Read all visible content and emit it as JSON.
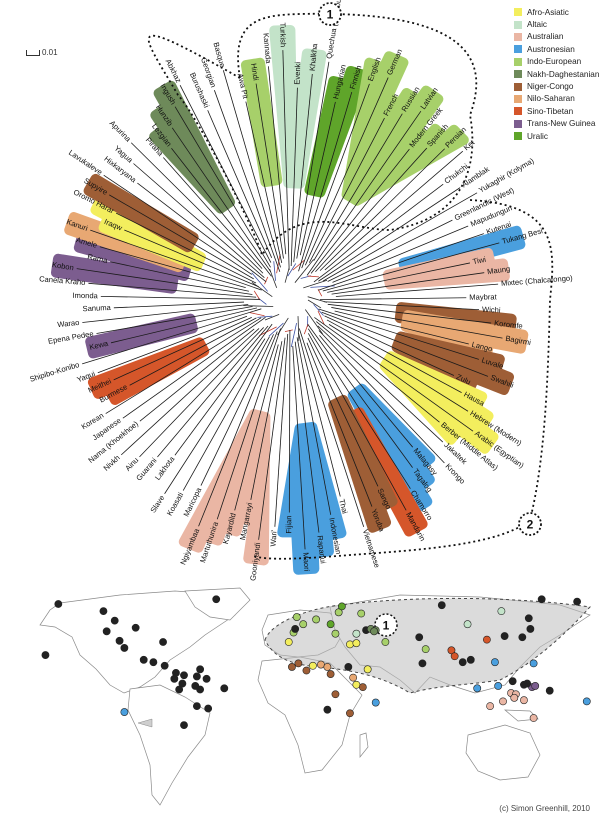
{
  "scale_label": "0.01",
  "credit": "(c) Simon Greenhill, 2010",
  "groups": [
    {
      "name": "Afro-Asiatic",
      "color": "#f3ee5e"
    },
    {
      "name": "Altaic",
      "color": "#c3e3c9"
    },
    {
      "name": "Australian",
      "color": "#eab6a4"
    },
    {
      "name": "Austronesian",
      "color": "#4a9fde"
    },
    {
      "name": "Indo-European",
      "color": "#a7d06a"
    },
    {
      "name": "Nakh-Daghestanian",
      "color": "#6e8a5a"
    },
    {
      "name": "Niger-Congo",
      "color": "#9e5e36"
    },
    {
      "name": "Nilo-Saharan",
      "color": "#e8a873"
    },
    {
      "name": "Sino-Tibetan",
      "color": "#d5562a"
    },
    {
      "name": "Trans-New Guinea",
      "color": "#7c5d8f"
    },
    {
      "name": "Uralic",
      "color": "#5fa52a"
    }
  ],
  "cluster_tags": [
    "1",
    "2"
  ],
  "languages": [
    {
      "name": "Lezgian",
      "group": "Nakh-Daghestanian"
    },
    {
      "name": "Hunzib",
      "group": "Nakh-Daghestanian"
    },
    {
      "name": "Ingush",
      "group": "Nakh-Daghestanian"
    },
    {
      "name": "Abkhaz",
      "group": ""
    },
    {
      "name": "Burushaski",
      "group": ""
    },
    {
      "name": "Georgian",
      "group": ""
    },
    {
      "name": "Basque",
      "group": ""
    },
    {
      "name": "Awa Pit",
      "group": ""
    },
    {
      "name": "Hindi",
      "group": "Indo-European"
    },
    {
      "name": "Kannada",
      "group": ""
    },
    {
      "name": "Turkish",
      "group": "Altaic"
    },
    {
      "name": "Evenki",
      "group": "Altaic"
    },
    {
      "name": "Khalkha",
      "group": "Altaic"
    },
    {
      "name": "Quechua (Imbabura)",
      "group": ""
    },
    {
      "name": "Hungarian",
      "group": "Uralic"
    },
    {
      "name": "Finnish",
      "group": "Uralic"
    },
    {
      "name": "English",
      "group": "Indo-European"
    },
    {
      "name": "German",
      "group": "Indo-European"
    },
    {
      "name": "French",
      "group": "Indo-European"
    },
    {
      "name": "Russian",
      "group": "Indo-European"
    },
    {
      "name": "Latvian",
      "group": "Indo-European"
    },
    {
      "name": "Modern Greek",
      "group": "Indo-European"
    },
    {
      "name": "Spanish",
      "group": "Indo-European"
    },
    {
      "name": "Persian",
      "group": "Indo-European"
    },
    {
      "name": "Ket",
      "group": ""
    },
    {
      "name": "Chukchi",
      "group": ""
    },
    {
      "name": "Alamblak",
      "group": ""
    },
    {
      "name": "Yukaghir (Kolyma)",
      "group": ""
    },
    {
      "name": "Greenlandic (West)",
      "group": ""
    },
    {
      "name": "Mapudungun",
      "group": ""
    },
    {
      "name": "Kutenai",
      "group": ""
    },
    {
      "name": "Tukang Besi",
      "group": "Austronesian"
    },
    {
      "name": "Tiwi",
      "group": "Australian"
    },
    {
      "name": "Maung",
      "group": "Australian"
    },
    {
      "name": "Mixtec (Chalcatongo)",
      "group": ""
    },
    {
      "name": "Maybrat",
      "group": ""
    },
    {
      "name": "Wichi",
      "group": ""
    },
    {
      "name": "Koromfe",
      "group": "Niger-Congo"
    },
    {
      "name": "Bagirmi",
      "group": "Nilo-Saharan"
    },
    {
      "name": "Lango",
      "group": "Nilo-Saharan"
    },
    {
      "name": "Luvale",
      "group": "Niger-Congo"
    },
    {
      "name": "Swahili",
      "group": "Niger-Congo"
    },
    {
      "name": "Zulu",
      "group": "Niger-Congo"
    },
    {
      "name": "Hausa",
      "group": "Afro-Asiatic"
    },
    {
      "name": "Hebrew (Modern)",
      "group": "Afro-Asiatic"
    },
    {
      "name": "Arabic (Egyptian)",
      "group": "Afro-Asiatic"
    },
    {
      "name": "Berber (Middle Atlas)",
      "group": "Afro-Asiatic"
    },
    {
      "name": "Jakaltek",
      "group": ""
    },
    {
      "name": "Krongo",
      "group": ""
    },
    {
      "name": "Malagasy",
      "group": "Austronesian"
    },
    {
      "name": "Tagalog",
      "group": "Austronesian"
    },
    {
      "name": "Chamorro",
      "group": "Austronesian"
    },
    {
      "name": "Mandarin",
      "group": "Sino-Tibetan"
    },
    {
      "name": "Sango",
      "group": "Niger-Congo"
    },
    {
      "name": "Yoruba",
      "group": "Niger-Congo"
    },
    {
      "name": "Vietnamese",
      "group": ""
    },
    {
      "name": "Thai",
      "group": ""
    },
    {
      "name": "Indonesian",
      "group": "Austronesian"
    },
    {
      "name": "Rapanui",
      "group": "Austronesian"
    },
    {
      "name": "Maori",
      "group": "Austronesian"
    },
    {
      "name": "Fijian",
      "group": "Austronesian"
    },
    {
      "name": "Wari'",
      "group": ""
    },
    {
      "name": "Gooniyandi",
      "group": "Australian"
    },
    {
      "name": "Mangarrayi",
      "group": "Australian"
    },
    {
      "name": "Kayardild",
      "group": "Australian"
    },
    {
      "name": "Martuthunira",
      "group": "Australian"
    },
    {
      "name": "Ngiyambaa",
      "group": "Australian"
    },
    {
      "name": "Maricopa",
      "group": ""
    },
    {
      "name": "Koasati",
      "group": ""
    },
    {
      "name": "Slave",
      "group": ""
    },
    {
      "name": "Lakhota",
      "group": ""
    },
    {
      "name": "Guarani",
      "group": ""
    },
    {
      "name": "Ainu",
      "group": ""
    },
    {
      "name": "Nivkh",
      "group": ""
    },
    {
      "name": "Nama (Khoekhoe)",
      "group": ""
    },
    {
      "name": "Japanese",
      "group": ""
    },
    {
      "name": "Korean",
      "group": ""
    },
    {
      "name": "Burmese",
      "group": "Sino-Tibetan"
    },
    {
      "name": "Meithei",
      "group": "Sino-Tibetan"
    },
    {
      "name": "Yaqui",
      "group": ""
    },
    {
      "name": "Shipibo-Konibo",
      "group": ""
    },
    {
      "name": "Kewa",
      "group": "Trans-New Guinea"
    },
    {
      "name": "Epena Pedee",
      "group": ""
    },
    {
      "name": "Warao",
      "group": ""
    },
    {
      "name": "Sanuma",
      "group": ""
    },
    {
      "name": "Imonda",
      "group": ""
    },
    {
      "name": "Canela Kraho",
      "group": ""
    },
    {
      "name": "Kobon",
      "group": "Trans-New Guinea"
    },
    {
      "name": "Rama",
      "group": ""
    },
    {
      "name": "Amele",
      "group": "Trans-New Guinea"
    },
    {
      "name": "Kanuri",
      "group": "Nilo-Saharan"
    },
    {
      "name": "Iraqw",
      "group": "Afro-Asiatic"
    },
    {
      "name": "Oromo Harar",
      "group": "Afro-Asiatic"
    },
    {
      "name": "Supyire",
      "group": "Niger-Congo"
    },
    {
      "name": "Lavukaleve",
      "group": ""
    },
    {
      "name": "Hixkaryana",
      "group": ""
    },
    {
      "name": "Yagua",
      "group": ""
    },
    {
      "name": "Apurina",
      "group": ""
    },
    {
      "name": "Piraha",
      "group": ""
    }
  ],
  "map_points": [
    {
      "lon": -150,
      "lat": 64,
      "group": ""
    },
    {
      "lon": -122,
      "lat": 58,
      "group": ""
    },
    {
      "lon": -115,
      "lat": 50,
      "group": ""
    },
    {
      "lon": -120,
      "lat": 41,
      "group": ""
    },
    {
      "lon": -112,
      "lat": 33,
      "group": ""
    },
    {
      "lon": -102,
      "lat": 44,
      "group": ""
    },
    {
      "lon": -85,
      "lat": 32,
      "group": ""
    },
    {
      "lon": -109,
      "lat": 27,
      "group": ""
    },
    {
      "lon": -97,
      "lat": 17,
      "group": ""
    },
    {
      "lon": -91,
      "lat": 15,
      "group": ""
    },
    {
      "lon": -84,
      "lat": 12,
      "group": ""
    },
    {
      "lon": -52,
      "lat": 68,
      "group": ""
    },
    {
      "lon": -77,
      "lat": 6,
      "group": ""
    },
    {
      "lon": -72,
      "lat": 4,
      "group": ""
    },
    {
      "lon": -62,
      "lat": 9,
      "group": ""
    },
    {
      "lon": -64,
      "lat": 3,
      "group": ""
    },
    {
      "lon": -78,
      "lat": 1,
      "group": ""
    },
    {
      "lon": -73,
      "lat": -3,
      "group": ""
    },
    {
      "lon": -65,
      "lat": -5,
      "group": ""
    },
    {
      "lon": -58,
      "lat": 1,
      "group": ""
    },
    {
      "lon": -75,
      "lat": -8,
      "group": ""
    },
    {
      "lon": -62,
      "lat": -8,
      "group": ""
    },
    {
      "lon": -47,
      "lat": -7,
      "group": ""
    },
    {
      "lon": -57,
      "lat": -24,
      "group": ""
    },
    {
      "lon": -72,
      "lat": -38,
      "group": ""
    },
    {
      "lon": -64,
      "lat": -22,
      "group": ""
    },
    {
      "lon": -109,
      "lat": -27,
      "group": "Austronesian"
    },
    {
      "lon": -2,
      "lat": 53,
      "group": "Indo-European"
    },
    {
      "lon": 2,
      "lat": 47,
      "group": "Indo-European"
    },
    {
      "lon": -4,
      "lat": 40,
      "group": "Indo-European"
    },
    {
      "lon": 10,
      "lat": 51,
      "group": "Indo-European"
    },
    {
      "lon": 24,
      "lat": 57,
      "group": "Indo-European"
    },
    {
      "lon": 38,
      "lat": 56,
      "group": "Indo-European"
    },
    {
      "lon": 22,
      "lat": 39,
      "group": "Indo-European"
    },
    {
      "lon": 53,
      "lat": 32,
      "group": "Indo-European"
    },
    {
      "lon": 78,
      "lat": 26,
      "group": "Indo-European"
    },
    {
      "lon": -3,
      "lat": 43,
      "group": ""
    },
    {
      "lon": 26,
      "lat": 62,
      "group": "Uralic"
    },
    {
      "lon": 19,
      "lat": 47,
      "group": "Uralic"
    },
    {
      "lon": 41,
      "lat": 42,
      "group": ""
    },
    {
      "lon": 44,
      "lat": 43,
      "group": "Nakh-Daghestanian"
    },
    {
      "lon": 47,
      "lat": 42,
      "group": "Nakh-Daghestanian"
    },
    {
      "lon": 46,
      "lat": 41,
      "group": "Nakh-Daghestanian"
    },
    {
      "lon": 35,
      "lat": 39,
      "group": "Altaic"
    },
    {
      "lon": 104,
      "lat": 47,
      "group": "Altaic"
    },
    {
      "lon": 125,
      "lat": 58,
      "group": "Altaic"
    },
    {
      "lon": 74,
      "lat": 36,
      "group": ""
    },
    {
      "lon": 88,
      "lat": 63,
      "group": ""
    },
    {
      "lon": 150,
      "lat": 68,
      "group": ""
    },
    {
      "lon": 172,
      "lat": 66,
      "group": ""
    },
    {
      "lon": 142,
      "lat": 52,
      "group": ""
    },
    {
      "lon": 143,
      "lat": 43,
      "group": ""
    },
    {
      "lon": 138,
      "lat": 36,
      "group": ""
    },
    {
      "lon": 127,
      "lat": 37,
      "group": ""
    },
    {
      "lon": 76,
      "lat": 14,
      "group": ""
    },
    {
      "lon": 94,
      "lat": 25,
      "group": "Sino-Tibetan"
    },
    {
      "lon": 96,
      "lat": 20,
      "group": "Sino-Tibetan"
    },
    {
      "lon": 116,
      "lat": 34,
      "group": "Sino-Tibetan"
    },
    {
      "lon": 101,
      "lat": 15,
      "group": ""
    },
    {
      "lon": 106,
      "lat": 17,
      "group": ""
    },
    {
      "lon": 121,
      "lat": 15,
      "group": "Austronesian"
    },
    {
      "lon": 145,
      "lat": 14,
      "group": "Austronesian"
    },
    {
      "lon": 110,
      "lat": -7,
      "group": "Austronesian"
    },
    {
      "lon": 123,
      "lat": -5,
      "group": "Austronesian"
    },
    {
      "lon": 178,
      "lat": -18,
      "group": "Austronesian"
    },
    {
      "lon": 47,
      "lat": -19,
      "group": "Austronesian"
    },
    {
      "lon": 132,
      "lat": -1,
      "group": ""
    },
    {
      "lon": 144,
      "lat": -6,
      "group": "Trans-New Guinea"
    },
    {
      "lon": 146,
      "lat": -5,
      "group": "Trans-New Guinea"
    },
    {
      "lon": 141,
      "lat": -3,
      "group": ""
    },
    {
      "lon": 155,
      "lat": -9,
      "group": ""
    },
    {
      "lon": 139,
      "lat": -4,
      "group": ""
    },
    {
      "lon": 131,
      "lat": -11,
      "group": "Australian"
    },
    {
      "lon": 134,
      "lat": -12,
      "group": "Australian"
    },
    {
      "lon": 126,
      "lat": -18,
      "group": "Australian"
    },
    {
      "lon": 139,
      "lat": -17,
      "group": "Australian"
    },
    {
      "lon": 118,
      "lat": -22,
      "group": "Australian"
    },
    {
      "lon": 145,
      "lat": -32,
      "group": "Australian"
    },
    {
      "lon": 133,
      "lat": -15,
      "group": "Australian"
    },
    {
      "lon": -7,
      "lat": 32,
      "group": "Afro-Asiatic"
    },
    {
      "lon": 31,
      "lat": 30,
      "group": "Afro-Asiatic"
    },
    {
      "lon": 35,
      "lat": 31,
      "group": "Afro-Asiatic"
    },
    {
      "lon": 8,
      "lat": 12,
      "group": "Afro-Asiatic"
    },
    {
      "lon": 42,
      "lat": 9,
      "group": "Afro-Asiatic"
    },
    {
      "lon": 35,
      "lat": -4,
      "group": "Afro-Asiatic"
    },
    {
      "lon": -5,
      "lat": 11,
      "group": "Niger-Congo"
    },
    {
      "lon": -1,
      "lat": 14,
      "group": "Niger-Congo"
    },
    {
      "lon": 4,
      "lat": 8,
      "group": "Niger-Congo"
    },
    {
      "lon": 19,
      "lat": 5,
      "group": "Niger-Congo"
    },
    {
      "lon": 39,
      "lat": -6,
      "group": "Niger-Congo"
    },
    {
      "lon": 22,
      "lat": -12,
      "group": "Niger-Congo"
    },
    {
      "lon": 31,
      "lat": -28,
      "group": "Niger-Congo"
    },
    {
      "lon": 13,
      "lat": 13,
      "group": "Nilo-Saharan"
    },
    {
      "lon": 17,
      "lat": 11,
      "group": "Nilo-Saharan"
    },
    {
      "lon": 33,
      "lat": 2,
      "group": "Nilo-Saharan"
    },
    {
      "lon": 30,
      "lat": 11,
      "group": ""
    },
    {
      "lon": 17,
      "lat": -25,
      "group": ""
    },
    {
      "lon": -158,
      "lat": 21,
      "group": ""
    }
  ]
}
